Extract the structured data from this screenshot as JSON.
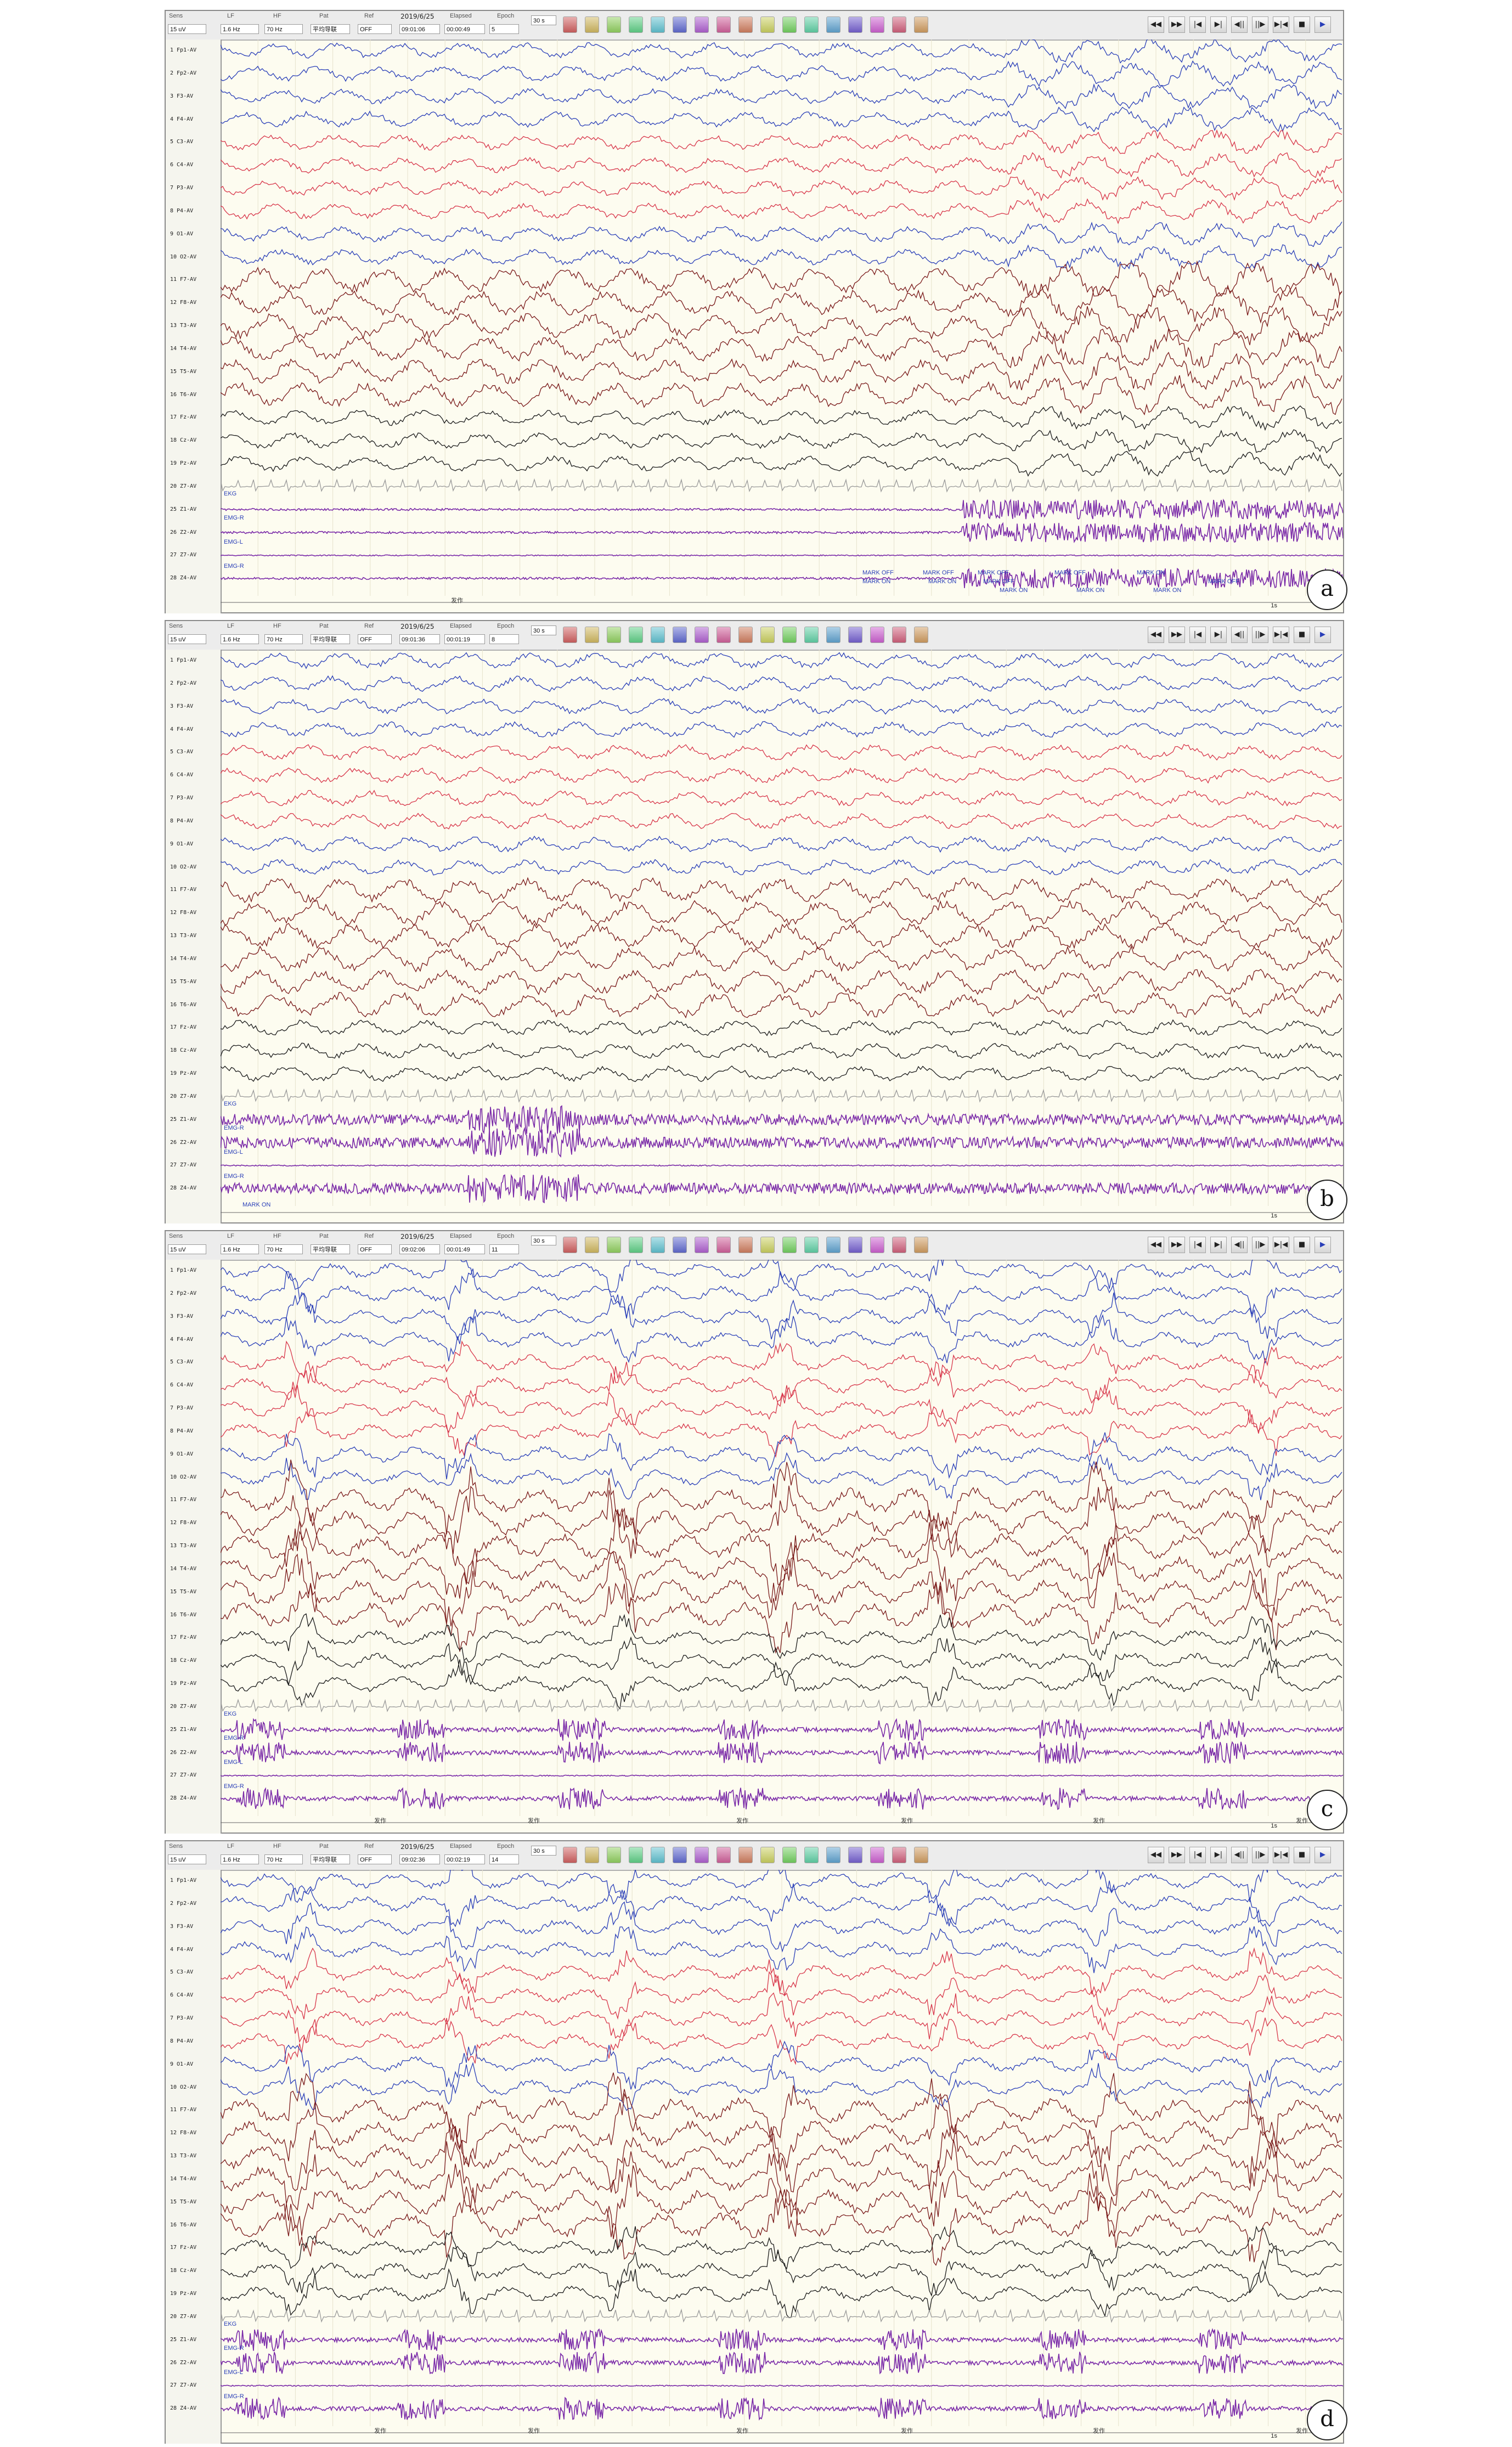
{
  "toolbar_labels": {
    "sens": "Sens",
    "lf": "LF",
    "hf": "HF",
    "pat": "Pat",
    "ref": "Ref",
    "elapsed": "Elapsed",
    "epoch": "Epoch"
  },
  "toolbar_values": {
    "sens": "15 uV",
    "lf": "1.6 Hz",
    "hf": "70 Hz",
    "pat": "平均导联",
    "ref": "OFF",
    "page_width": "30 s"
  },
  "channel_labels": [
    "1 Fp1-AV",
    "2 Fp2-AV",
    "3 F3-AV",
    "4 F4-AV",
    "5 C3-AV",
    "6 C4-AV",
    "7 P3-AV",
    "8 P4-AV",
    "9 O1-AV",
    "10 O2-AV",
    "11 F7-AV",
    "12 F8-AV",
    "13 T3-AV",
    "14 T4-AV",
    "15 T5-AV",
    "16 T6-AV",
    "17 Fz-AV",
    "18 Cz-AV",
    "19 Pz-AV",
    "20 Z7-AV",
    "25 Z1-AV",
    "26 Z2-AV",
    "27 Z7-AV",
    "28 Z4-AV"
  ],
  "emg_labels": [
    "EKG",
    "EMG-R",
    "EMG-L",
    "EMG-R"
  ],
  "scale": {
    "amplitude": "75uV",
    "time": "1s"
  },
  "colors": {
    "blue": "#2a3fb8",
    "red": "#d8364a",
    "maroon": "#7a1a1a",
    "black": "#1a1a1a",
    "ekg": "#9a9a9a",
    "emg": "#7a2aa8",
    "background": "#fdfcf0"
  },
  "panels": [
    {
      "tag": "a",
      "date": "2019/6/25",
      "clock": "09:01:06",
      "elapsed": "00:00:49",
      "epoch": "5",
      "marks": [
        "MARK OFF",
        "MARK OFF",
        "MARK OFF",
        "MARK ON",
        "MARK ON",
        "MARK OFF",
        "MARK OFF",
        "MARK ON",
        "MARK ON",
        "MARK ON",
        "MARK ON",
        "MARK OFF"
      ],
      "events": [
        "发作"
      ]
    },
    {
      "tag": "b",
      "date": "2019/6/25",
      "clock": "09:01:36",
      "elapsed": "00:01:19",
      "epoch": "8",
      "marks": [
        "MARK ON"
      ],
      "events": []
    },
    {
      "tag": "c",
      "date": "2019/6/25",
      "clock": "09:02:06",
      "elapsed": "00:01:49",
      "epoch": "11",
      "marks": [],
      "events": [
        "发作",
        "发作",
        "发作",
        "发作",
        "发作",
        "发作"
      ]
    },
    {
      "tag": "d",
      "date": "2019/6/25",
      "clock": "09:02:36",
      "elapsed": "00:02:19",
      "epoch": "14",
      "marks": [],
      "events": [
        "发作",
        "发作",
        "发作",
        "发作",
        "发作",
        "发作"
      ]
    }
  ]
}
